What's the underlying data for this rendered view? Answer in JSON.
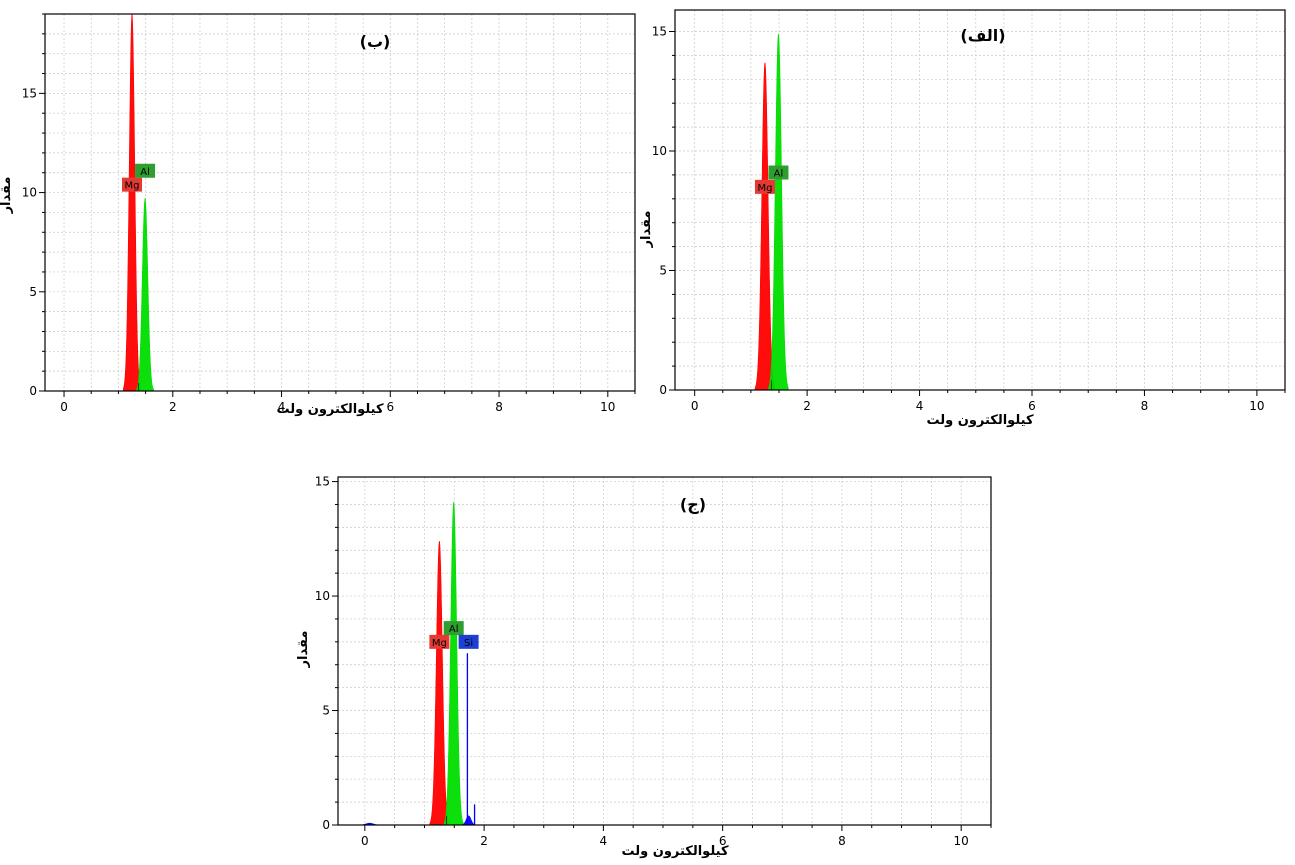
{
  "chart_data": [
    {
      "panel": "ب",
      "panel_label": "(ب)",
      "type": "area",
      "xlabel": "کیلوالکترون ولت",
      "ylabel": "مقدار",
      "xlim": [
        -0.35,
        10.5
      ],
      "ylim": [
        0,
        19
      ],
      "xticks": [
        0,
        2,
        4,
        6,
        8,
        10
      ],
      "yticks": [
        0,
        5,
        10,
        15
      ],
      "grid": true,
      "peaks": [
        {
          "element": "Mg",
          "label": "Mg",
          "energy": 1.25,
          "height": 19.0,
          "width": 0.05,
          "color": "#ff0000",
          "label_bg": "#e53935"
        },
        {
          "element": "Al",
          "label": "Al",
          "energy": 1.49,
          "height": 9.7,
          "width": 0.05,
          "color": "#00dd00",
          "label_bg": "#2e9e2e"
        }
      ],
      "labels": [
        {
          "text": "Mg",
          "x": 1.25,
          "y": 10.4,
          "color": "#e53935"
        },
        {
          "text": "Al",
          "x": 1.49,
          "y": 11.1,
          "color": "#2e9e2e"
        }
      ]
    },
    {
      "panel": "الف",
      "panel_label": "(الف)",
      "type": "area",
      "xlabel": "کیلوالکترون ولت",
      "ylabel": "مقدار",
      "xlim": [
        -0.35,
        10.5
      ],
      "ylim": [
        0,
        15.9
      ],
      "xticks": [
        0,
        2,
        4,
        6,
        8,
        10
      ],
      "yticks": [
        0,
        5,
        10,
        15
      ],
      "grid": true,
      "peaks": [
        {
          "element": "Mg",
          "label": "Mg",
          "energy": 1.25,
          "height": 13.7,
          "width": 0.055,
          "color": "#ff0000",
          "label_bg": "#e53935"
        },
        {
          "element": "Al",
          "label": "Al",
          "energy": 1.49,
          "height": 14.9,
          "width": 0.055,
          "color": "#00dd00",
          "label_bg": "#2e9e2e"
        }
      ],
      "labels": [
        {
          "text": "Mg",
          "x": 1.25,
          "y": 8.5,
          "color": "#e53935"
        },
        {
          "text": "Al",
          "x": 1.49,
          "y": 9.1,
          "color": "#2e9e2e"
        }
      ]
    },
    {
      "panel": "ج",
      "panel_label": "(ج)",
      "type": "area",
      "xlabel": "کیلوالکترون ولت",
      "ylabel": "مقدار",
      "xlim": [
        -0.45,
        10.5
      ],
      "ylim": [
        0,
        15.2
      ],
      "xticks": [
        0,
        2,
        4,
        6,
        8,
        10
      ],
      "yticks": [
        0,
        5,
        10,
        15
      ],
      "grid": true,
      "peaks": [
        {
          "element": "Mg",
          "label": "Mg",
          "energy": 1.25,
          "height": 12.4,
          "width": 0.05,
          "color": "#ff0000",
          "label_bg": "#e53935"
        },
        {
          "element": "Al",
          "label": "Al",
          "energy": 1.49,
          "height": 14.1,
          "width": 0.05,
          "color": "#00dd00",
          "label_bg": "#2e9e2e"
        },
        {
          "element": "Si",
          "label": "Si",
          "energy": 1.74,
          "height": 0.4,
          "width": 0.04,
          "color": "#0000ff",
          "label_bg": "#1e3fd6"
        },
        {
          "element": "Si-line",
          "label": "",
          "energy": 1.72,
          "height": 7.5,
          "width": 0.004,
          "color": "#0000ff",
          "label_bg": ""
        },
        {
          "element": "small",
          "label": "",
          "energy": 1.84,
          "height": 0.9,
          "width": 0.004,
          "color": "#0000ff",
          "label_bg": ""
        },
        {
          "element": "low",
          "label": "",
          "energy": 0.08,
          "height": 0.08,
          "width": 0.06,
          "color": "#0000ff",
          "label_bg": ""
        }
      ],
      "labels": [
        {
          "text": "Mg",
          "x": 1.25,
          "y": 8.0,
          "color": "#e53935"
        },
        {
          "text": "Al",
          "x": 1.49,
          "y": 8.6,
          "color": "#2e9e2e"
        },
        {
          "text": "Si",
          "x": 1.74,
          "y": 8.0,
          "color": "#1e3fd6"
        }
      ]
    }
  ]
}
